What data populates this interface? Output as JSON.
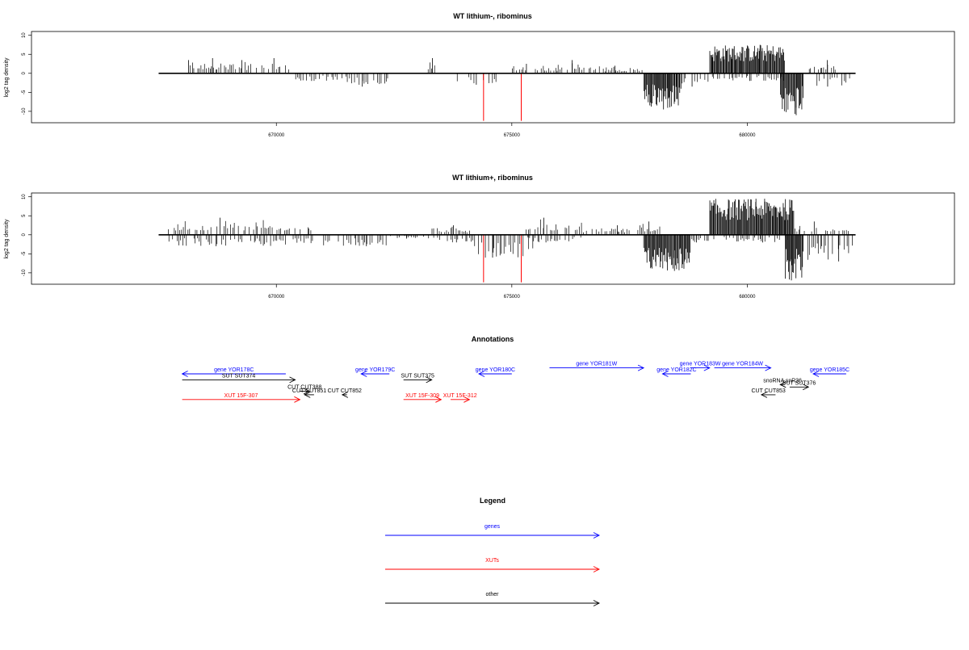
{
  "chart_data": [
    {
      "type": "bar",
      "title": "WT lithium-, ribominus",
      "ylabel": "log2 tag density",
      "xlabel": "",
      "xlim": [
        664800,
        684400
      ],
      "ylim": [
        -13,
        11
      ],
      "x_ticks": [
        670000,
        675000,
        680000
      ],
      "y_ticks": [
        10,
        5,
        0,
        -5,
        -10
      ],
      "axis_line": [
        667500,
        682300
      ],
      "grid": false,
      "series": [
        {
          "segments": [
            {
              "start": 668100,
              "end": 668200,
              "max": 3.5
            },
            {
              "start": 668200,
              "end": 669000,
              "max": 4
            },
            {
              "start": 669000,
              "end": 669600,
              "max": 3.5
            },
            {
              "start": 669600,
              "end": 670300,
              "max": 4
            },
            {
              "start": 670400,
              "end": 671500,
              "min": -2
            },
            {
              "start": 671500,
              "end": 672400,
              "min": -3.5
            },
            {
              "start": 673200,
              "end": 673400,
              "max": 4
            },
            {
              "start": 673800,
              "end": 674700,
              "min": -3
            },
            {
              "start": 675000,
              "end": 676000,
              "max": 2.5
            },
            {
              "start": 675900,
              "end": 676700,
              "max": 3.5
            },
            {
              "start": 676700,
              "end": 677800,
              "max": 2
            },
            {
              "start": 677800,
              "end": 678600,
              "min": -9.5
            },
            {
              "start": 678600,
              "end": 679200,
              "min": -3.5
            },
            {
              "start": 679200,
              "end": 680800,
              "max": 7.5
            },
            {
              "start": 679200,
              "end": 680800,
              "min": -2
            },
            {
              "start": 680700,
              "end": 681200,
              "min": -11
            },
            {
              "start": 681300,
              "end": 681900,
              "max": 3.5
            },
            {
              "start": 681400,
              "end": 682200,
              "min": -3.5
            }
          ],
          "highlights": [
            {
              "x": 674400,
              "y": -12.5
            },
            {
              "x": 675200,
              "y": -12.5
            }
          ]
        }
      ]
    },
    {
      "type": "bar",
      "title": "WT lithium+, ribominus",
      "ylabel": "log2 tag density",
      "xlabel": "",
      "xlim": [
        664800,
        684400
      ],
      "ylim": [
        -13,
        11
      ],
      "x_ticks": [
        670000,
        675000,
        680000
      ],
      "y_ticks": [
        10,
        5,
        0,
        -5,
        -10
      ],
      "axis_line": [
        667500,
        682300
      ],
      "grid": false,
      "series": [
        {
          "segments": [
            {
              "start": 667700,
              "end": 670800,
              "max": 4.5
            },
            {
              "start": 667700,
              "end": 670800,
              "min": -3
            },
            {
              "start": 671000,
              "end": 672400,
              "min": -3
            },
            {
              "start": 672400,
              "end": 673300,
              "min": -1
            },
            {
              "start": 673300,
              "end": 674200,
              "max": 2.5
            },
            {
              "start": 673300,
              "end": 674200,
              "min": -2
            },
            {
              "start": 674200,
              "end": 675500,
              "min": -6
            },
            {
              "start": 675300,
              "end": 676500,
              "max": 4.5
            },
            {
              "start": 675300,
              "end": 676500,
              "min": -2
            },
            {
              "start": 676500,
              "end": 677700,
              "max": 2.5
            },
            {
              "start": 677700,
              "end": 678200,
              "max": 3.5
            },
            {
              "start": 677800,
              "end": 678800,
              "min": -9.5
            },
            {
              "start": 678800,
              "end": 679200,
              "min": -2
            },
            {
              "start": 679200,
              "end": 681000,
              "max": 9.5
            },
            {
              "start": 679200,
              "end": 680900,
              "min": -2
            },
            {
              "start": 680800,
              "end": 681200,
              "min": -12
            },
            {
              "start": 681000,
              "end": 682200,
              "max": 3.5
            },
            {
              "start": 681200,
              "end": 682300,
              "min": -7
            }
          ],
          "highlights": [
            {
              "x": 674400,
              "y": -12.5
            },
            {
              "x": 675200,
              "y": -12.5
            }
          ]
        }
      ]
    }
  ],
  "annotations": {
    "title": "Annotations",
    "items": [
      {
        "label": "gene YOR178C",
        "color": "#0000ff",
        "start": 668000,
        "end": 670200,
        "dir": "left",
        "row": 0
      },
      {
        "label": "gene YOR179C",
        "color": "#0000ff",
        "start": 671800,
        "end": 672400,
        "dir": "left",
        "row": 0
      },
      {
        "label": "gene YOR180C",
        "color": "#0000ff",
        "start": 674300,
        "end": 675000,
        "dir": "left",
        "row": 0
      },
      {
        "label": "gene YOR181W",
        "color": "#0000ff",
        "start": 675800,
        "end": 677800,
        "dir": "right",
        "row": -1
      },
      {
        "label": "gene YOR182C",
        "color": "#0000ff",
        "start": 678200,
        "end": 678800,
        "dir": "left",
        "row": 0
      },
      {
        "label": "gene YOR183W",
        "color": "#0000ff",
        "start": 678800,
        "end": 679200,
        "dir": "right",
        "row": -1
      },
      {
        "label": "gene YOR184W",
        "color": "#0000ff",
        "start": 679300,
        "end": 680500,
        "dir": "right",
        "row": -1
      },
      {
        "label": "gene YOR185C",
        "color": "#0000ff",
        "start": 681400,
        "end": 682100,
        "dir": "left",
        "row": 0
      },
      {
        "label": "SUT SUT374",
        "color": "#000000",
        "start": 668000,
        "end": 670400,
        "dir": "right",
        "row": 1
      },
      {
        "label": "SUT SUT375",
        "color": "#000000",
        "start": 672700,
        "end": 673300,
        "dir": "right",
        "row": 1
      },
      {
        "label": "snoRNA snR36",
        "color": "#000000",
        "start": 680700,
        "end": 680800,
        "dir": "left",
        "row": 1.8
      },
      {
        "label": "SUT SUT376",
        "color": "#000000",
        "start": 680900,
        "end": 681300,
        "dir": "right",
        "row": 2.2
      },
      {
        "label": "CUT CUT388",
        "color": "#000000",
        "start": 670500,
        "end": 670700,
        "dir": "right",
        "row": 2.9
      },
      {
        "label": "CUT CUT851",
        "color": "#000000",
        "start": 670600,
        "end": 670800,
        "dir": "left",
        "row": 3.5
      },
      {
        "label": "CUT CUT852",
        "color": "#000000",
        "start": 671400,
        "end": 671500,
        "dir": "left",
        "row": 3.5
      },
      {
        "label": "CUT CUT853",
        "color": "#000000",
        "start": 680300,
        "end": 680600,
        "dir": "left",
        "row": 3.5
      },
      {
        "label": "XUT 15F-307",
        "color": "#ff0000",
        "start": 668000,
        "end": 670500,
        "dir": "right",
        "row": 4.3
      },
      {
        "label": "XUT 15F-309",
        "color": "#ff0000",
        "start": 672700,
        "end": 673500,
        "dir": "right",
        "row": 4.3
      },
      {
        "label": "XUT 15F-312",
        "color": "#ff0000",
        "start": 673700,
        "end": 674100,
        "dir": "right",
        "row": 4.3
      }
    ]
  },
  "legend": {
    "title": "Legend",
    "items": [
      {
        "label": "genes",
        "color": "#0000ff"
      },
      {
        "label": "XUTs",
        "color": "#ff0000"
      },
      {
        "label": "other",
        "color": "#000000"
      }
    ]
  }
}
